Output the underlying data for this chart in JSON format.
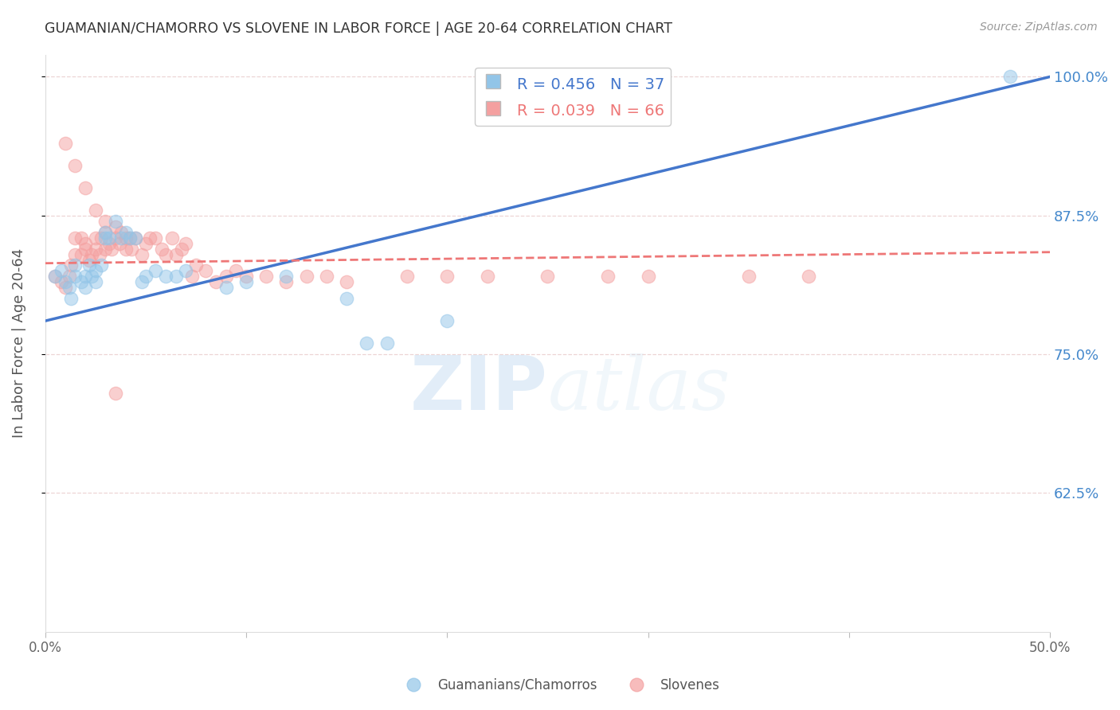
{
  "title": "GUAMANIAN/CHAMORRO VS SLOVENE IN LABOR FORCE | AGE 20-64 CORRELATION CHART",
  "source": "Source: ZipAtlas.com",
  "xlabel": "",
  "ylabel": "In Labor Force | Age 20-64",
  "xlim": [
    0.0,
    0.5
  ],
  "ylim": [
    0.5,
    1.02
  ],
  "xticks": [
    0.0,
    0.1,
    0.2,
    0.3,
    0.4,
    0.5
  ],
  "xticklabels": [
    "0.0%",
    "",
    "",
    "",
    "",
    "50.0%"
  ],
  "ytick_positions": [
    0.625,
    0.75,
    0.875,
    1.0
  ],
  "ytick_labels": [
    "62.5%",
    "75.0%",
    "87.5%",
    "100.0%"
  ],
  "blue_R": 0.456,
  "blue_N": 37,
  "pink_R": 0.039,
  "pink_N": 66,
  "blue_color": "#92C5E8",
  "pink_color": "#F4A0A0",
  "blue_line_color": "#4477CC",
  "pink_line_color": "#EE7777",
  "blue_scatter_x": [
    0.005,
    0.008,
    0.01,
    0.012,
    0.013,
    0.015,
    0.015,
    0.018,
    0.02,
    0.02,
    0.022,
    0.023,
    0.025,
    0.025,
    0.028,
    0.03,
    0.03,
    0.032,
    0.035,
    0.038,
    0.04,
    0.042,
    0.045,
    0.048,
    0.05,
    0.055,
    0.06,
    0.065,
    0.07,
    0.09,
    0.1,
    0.12,
    0.15,
    0.16,
    0.17,
    0.2,
    0.48
  ],
  "blue_scatter_y": [
    0.82,
    0.825,
    0.815,
    0.81,
    0.8,
    0.82,
    0.83,
    0.815,
    0.81,
    0.82,
    0.83,
    0.82,
    0.815,
    0.825,
    0.83,
    0.86,
    0.855,
    0.855,
    0.87,
    0.855,
    0.86,
    0.855,
    0.855,
    0.815,
    0.82,
    0.825,
    0.82,
    0.82,
    0.825,
    0.81,
    0.815,
    0.82,
    0.8,
    0.76,
    0.76,
    0.78,
    1.0
  ],
  "pink_scatter_x": [
    0.005,
    0.008,
    0.01,
    0.012,
    0.013,
    0.015,
    0.015,
    0.018,
    0.018,
    0.02,
    0.02,
    0.022,
    0.023,
    0.025,
    0.025,
    0.027,
    0.028,
    0.03,
    0.03,
    0.032,
    0.033,
    0.035,
    0.035,
    0.037,
    0.038,
    0.04,
    0.04,
    0.042,
    0.043,
    0.045,
    0.048,
    0.05,
    0.052,
    0.055,
    0.058,
    0.06,
    0.063,
    0.065,
    0.068,
    0.07,
    0.073,
    0.075,
    0.08,
    0.085,
    0.09,
    0.095,
    0.1,
    0.11,
    0.12,
    0.13,
    0.14,
    0.15,
    0.18,
    0.2,
    0.22,
    0.25,
    0.28,
    0.3,
    0.35,
    0.38,
    0.01,
    0.015,
    0.02,
    0.025,
    0.03,
    0.035
  ],
  "pink_scatter_y": [
    0.82,
    0.815,
    0.81,
    0.82,
    0.83,
    0.855,
    0.84,
    0.84,
    0.855,
    0.845,
    0.85,
    0.835,
    0.84,
    0.845,
    0.855,
    0.84,
    0.855,
    0.845,
    0.86,
    0.85,
    0.845,
    0.855,
    0.865,
    0.85,
    0.86,
    0.855,
    0.845,
    0.855,
    0.845,
    0.855,
    0.84,
    0.85,
    0.855,
    0.855,
    0.845,
    0.84,
    0.855,
    0.84,
    0.845,
    0.85,
    0.82,
    0.83,
    0.825,
    0.815,
    0.82,
    0.825,
    0.82,
    0.82,
    0.815,
    0.82,
    0.82,
    0.815,
    0.82,
    0.82,
    0.82,
    0.82,
    0.82,
    0.82,
    0.82,
    0.82,
    0.94,
    0.92,
    0.9,
    0.88,
    0.87,
    0.715
  ],
  "background_color": "#FFFFFF",
  "grid_color": "#EDD5D5",
  "title_color": "#333333",
  "ylabel_color": "#555555",
  "right_tick_color": "#4488CC",
  "source_color": "#999999"
}
